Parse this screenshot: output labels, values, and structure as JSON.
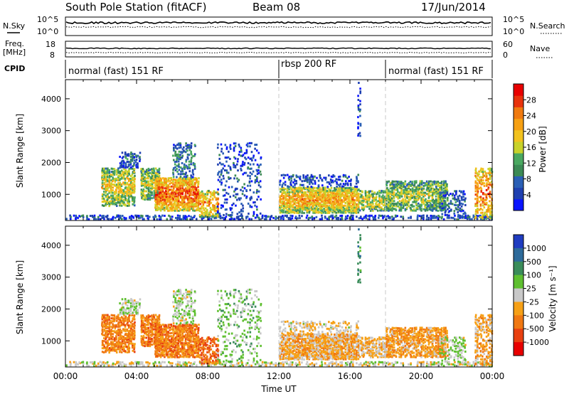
{
  "header": {
    "station": "South Pole Station (fitACF)",
    "beam": "Beam 08",
    "date": "17/Jun/2014"
  },
  "noise_panel": {
    "left_label": "N.Sky",
    "left_ticks": [
      "10^5",
      "10^0"
    ],
    "right_label": "N.Search",
    "right_ticks": [
      "10^5",
      "10^0"
    ]
  },
  "freq_panel": {
    "left_label_line1": "Freq.",
    "left_label_line2": "[MHz]",
    "left_ticks": [
      "18",
      "8"
    ],
    "right_label": "Nave",
    "right_ticks": [
      "60",
      "0"
    ]
  },
  "cpid": {
    "label": "CPID",
    "segments": [
      {
        "label": "normal (fast) 151 RF",
        "start_hour": 0,
        "end_hour": 12
      },
      {
        "label": "rbsp 200 RF",
        "start_hour": 12,
        "end_hour": 18
      },
      {
        "label": "normal (fast) 151 RF",
        "start_hour": 18,
        "end_hour": 24
      }
    ]
  },
  "chart_data": [
    {
      "type": "heatmap",
      "title": "",
      "xlabel": "",
      "ylabel": "Slant Range [km]",
      "ylim": [
        180,
        4600
      ],
      "xlim_hours": [
        0,
        24
      ],
      "y_ticks": [
        1000,
        2000,
        3000,
        4000
      ],
      "colorbar": {
        "label": "Power [dB]",
        "ticks": [
          "4",
          "8",
          "12",
          "16",
          "20",
          "24",
          "28"
        ],
        "colors": [
          "#0a14ff",
          "#1f40b0",
          "#2a5fb5",
          "#3c8a55",
          "#4aa860",
          "#c8d22a",
          "#f2c21e",
          "#f6a013",
          "#f07a10",
          "#e8320c",
          "#e80000"
        ]
      },
      "features": [
        {
          "region": "02:00-04:00",
          "slant_range_km": [
            600,
            1800
          ],
          "power_db": "16-28"
        },
        {
          "region": "04:30-07:30",
          "slant_range_km": [
            500,
            1500
          ],
          "power_db": "20-28"
        },
        {
          "region": "12:00-16:00",
          "slant_range_km": [
            400,
            1200
          ],
          "power_db": "20-28"
        },
        {
          "region": "16:00-22:00",
          "slant_range_km": [
            500,
            1300
          ],
          "power_db": "8-24"
        }
      ]
    },
    {
      "type": "heatmap",
      "title": "",
      "xlabel": "Time UT",
      "ylabel": "Slant Range [km]",
      "ylim": [
        180,
        4600
      ],
      "xlim_hours": [
        0,
        24
      ],
      "y_ticks": [
        1000,
        2000,
        3000,
        4000
      ],
      "x_ticks": [
        "00:00",
        "04:00",
        "08:00",
        "12:00",
        "16:00",
        "20:00",
        "00:00"
      ],
      "colorbar": {
        "label": "Velocity [m s⁻¹]",
        "ticks": [
          "1000",
          "500",
          "100",
          "25",
          "-25",
          "-100",
          "-500",
          "-1000"
        ],
        "colors": [
          "#1f3cc0",
          "#2d6a9a",
          "#3a8c5a",
          "#5fbf30",
          "#c8c8c8",
          "#f6a016",
          "#f07812",
          "#e84010",
          "#e80000"
        ]
      },
      "features": [
        {
          "region": "02:00-04:00",
          "slant_range_km": [
            600,
            1800
          ],
          "velocity": "-100 to -500"
        },
        {
          "region": "04:00-07:30",
          "slant_range_km": [
            500,
            1700
          ],
          "velocity": "-100 to -500"
        },
        {
          "region": "12:00-17:00",
          "slant_range_km": [
            400,
            1200
          ],
          "velocity": "-25 to -100"
        },
        {
          "region": "17:00-22:00",
          "slant_range_km": [
            500,
            1200
          ],
          "velocity": "-25 to -500"
        }
      ]
    }
  ]
}
